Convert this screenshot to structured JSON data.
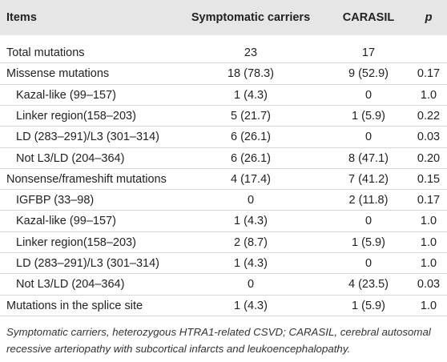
{
  "table": {
    "header": [
      "Items",
      "Symptomatic carriers",
      "CARASIL",
      "p"
    ],
    "sections": [
      {
        "row": [
          "Total mutations",
          "23",
          "17"
        ],
        "subrows": []
      },
      {
        "row": [
          "Missense mutations",
          "18 (78.3)",
          "9 (52.9)",
          "0.17"
        ],
        "subrows": [
          [
            "Kazal-like (99–157)",
            "1 (4.3)",
            "0",
            "1.0"
          ],
          [
            "Linker region(158–203)",
            "5 (21.7)",
            "1 (5.9)",
            "0.22"
          ],
          [
            "LD (283–291)/L3 (301–314)",
            "6 (26.1)",
            "0",
            "0.03"
          ],
          [
            "Not L3/LD (204–364)",
            "6 (26.1)",
            "8 (47.1)",
            "0.20"
          ]
        ]
      },
      {
        "row": [
          "Nonsense/frameshift mutations",
          "4 (17.4)",
          "7 (41.2)",
          "0.15"
        ],
        "subrows": [
          [
            "IGFBP (33–98)",
            "0",
            "2 (11.8)",
            "0.17"
          ],
          [
            "Kazal-like (99–157)",
            "1 (4.3)",
            "0",
            "1.0"
          ],
          [
            "Linker region(158–203)",
            "2 (8.7)",
            "1 (5.9)",
            "1.0"
          ],
          [
            "LD (283–291)/L3 (301–314)",
            "1 (4.3)",
            "0",
            "1.0"
          ],
          [
            "Not L3/LD (204–364)",
            "0",
            "4 (23.5)",
            "0.03"
          ]
        ]
      },
      {
        "row": [
          "Mutations in the splice site",
          "1 (4.3)",
          "1 (5.9)",
          "1.0"
        ],
        "subrows": []
      }
    ]
  },
  "footnote": "Symptomatic carriers, heterozygous HTRA1-related CSVD; CARASIL, cerebral autosomal recessive arteriopathy with subcortical infarcts and leukoencephalopathy."
}
